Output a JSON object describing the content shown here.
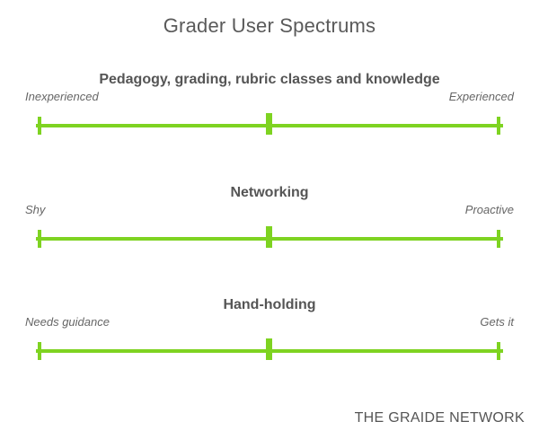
{
  "title": "Grader User Spectrums",
  "accent_color": "#7ed321",
  "spectrums": [
    {
      "title": "Pedagogy, grading, rubric classes and knowledge",
      "left_label": "Inexperienced",
      "right_label": "Experienced"
    },
    {
      "title": "Networking",
      "left_label": "Shy",
      "right_label": "Proactive"
    },
    {
      "title": "Hand-holding",
      "left_label": "Needs guidance",
      "right_label": "Gets it"
    }
  ],
  "footer": "THE GRAIDE NETWORK"
}
